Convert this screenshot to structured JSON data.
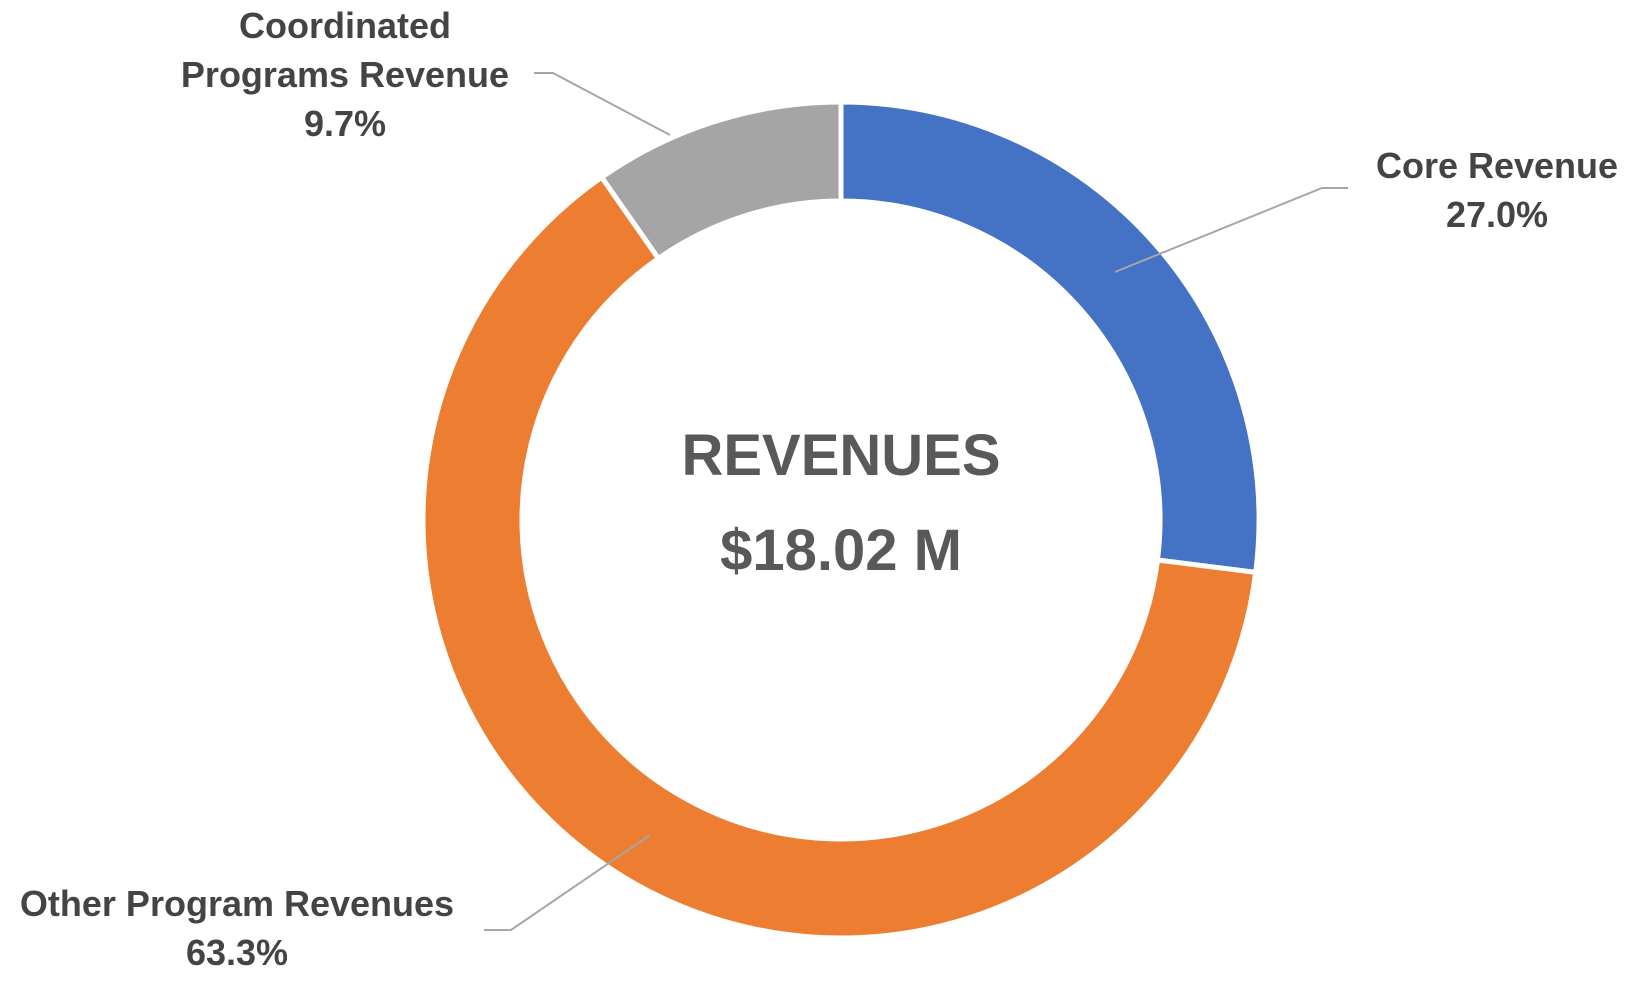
{
  "chart_data": {
    "type": "pie",
    "variant": "donut",
    "center_title": "REVENUES",
    "center_total": "$18.02 M",
    "slices": [
      {
        "label": "Core Revenue",
        "percent_text": "27.0%",
        "value": 27.0,
        "color": "#4472C4"
      },
      {
        "label": "Other Program Revenues",
        "percent_text": "63.3%",
        "value": 63.3,
        "color": "#ED7D31"
      },
      {
        "label": "Coordinated Programs Revenue",
        "percent_text": "9.7%",
        "value": 9.7,
        "color": "#A5A5A5"
      }
    ],
    "legend": "none"
  }
}
